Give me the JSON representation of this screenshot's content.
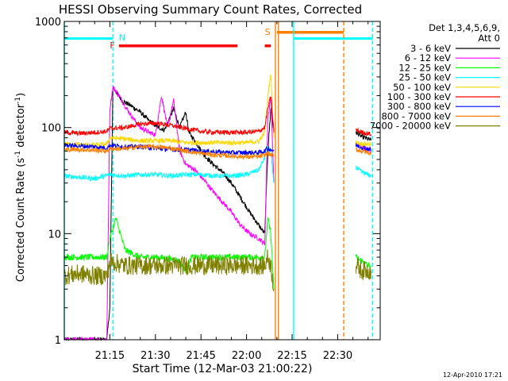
{
  "chart_data": {
    "type": "line",
    "title": "HESSI Observing Summary Count Rates, Corrected",
    "xlabel": "Start Time (12-Mar-03 21:00:22)",
    "ylabel_main": "Corrected Count Rate (s",
    "ylabel_sup1": "-1",
    "ylabel_mid": " detector",
    "ylabel_sup2": "-1",
    "ylabel_end": ")",
    "y_scale": "log",
    "ylim": [
      1,
      1000
    ],
    "xlim_minutes": [
      0,
      104
    ],
    "x_ticks": [
      {
        "m": 15,
        "label": "21:15"
      },
      {
        "m": 30,
        "label": "21:30"
      },
      {
        "m": 45,
        "label": "21:45"
      },
      {
        "m": 60,
        "label": "22:00"
      },
      {
        "m": 75,
        "label": "22:15"
      },
      {
        "m": 90,
        "label": "22:30"
      }
    ],
    "y_ticks": [
      {
        "v": 1,
        "label": "1"
      },
      {
        "v": 10,
        "label": "10"
      },
      {
        "v": 100,
        "label": "100"
      },
      {
        "v": 1000,
        "label": "1000"
      }
    ],
    "legend": {
      "header1": "Det 1,3,4,5,6,9,",
      "header2": "Att 0",
      "placement": "right"
    },
    "series": [
      {
        "name": "3 - 6 keV",
        "color": "#000000",
        "points": [
          [
            0,
            1
          ],
          [
            14,
            1
          ],
          [
            15,
            2
          ],
          [
            16,
            240
          ],
          [
            19,
            180
          ],
          [
            22,
            160
          ],
          [
            25,
            140
          ],
          [
            28,
            115
          ],
          [
            31,
            100
          ],
          [
            33,
            95
          ],
          [
            36,
            150
          ],
          [
            38,
            100
          ],
          [
            40,
            140
          ],
          [
            41,
            90
          ],
          [
            43,
            75
          ],
          [
            46,
            55
          ],
          [
            49,
            45
          ],
          [
            52,
            38
          ],
          [
            55,
            30
          ],
          [
            58,
            22
          ],
          [
            61,
            16
          ],
          [
            64,
            12
          ],
          [
            66,
            10
          ],
          [
            67,
            60
          ],
          [
            68,
            150
          ],
          [
            69,
            90
          ]
        ],
        "points_b": [
          [
            96,
            90
          ],
          [
            98,
            82
          ],
          [
            100,
            78
          ],
          [
            101,
            76
          ]
        ]
      },
      {
        "name": "6 - 12 keV",
        "color": "#ff00ff",
        "points": [
          [
            0,
            1
          ],
          [
            14,
            1
          ],
          [
            15,
            150
          ],
          [
            16,
            240
          ],
          [
            18,
            200
          ],
          [
            20,
            160
          ],
          [
            22,
            130
          ],
          [
            25,
            100
          ],
          [
            28,
            90
          ],
          [
            30,
            85
          ],
          [
            32,
            200
          ],
          [
            34,
            100
          ],
          [
            36,
            180
          ],
          [
            38,
            60
          ],
          [
            40,
            45
          ],
          [
            43,
            40
          ],
          [
            46,
            32
          ],
          [
            49,
            25
          ],
          [
            52,
            20
          ],
          [
            55,
            16
          ],
          [
            58,
            12
          ],
          [
            61,
            10
          ],
          [
            64,
            9
          ],
          [
            66,
            8
          ],
          [
            67,
            120
          ],
          [
            68,
            200
          ],
          [
            69,
            30
          ]
        ],
        "points_b": [
          [
            96,
            70
          ],
          [
            98,
            65
          ],
          [
            100,
            62
          ],
          [
            101,
            60
          ]
        ]
      },
      {
        "name": "12 - 25 keV",
        "color": "#00ff00",
        "points": [
          [
            0,
            6
          ],
          [
            5,
            6
          ],
          [
            10,
            6
          ],
          [
            14,
            6
          ],
          [
            15,
            9
          ],
          [
            17,
            14
          ],
          [
            20,
            7
          ],
          [
            25,
            6
          ],
          [
            30,
            6
          ],
          [
            35,
            5.8
          ],
          [
            38,
            5.5
          ],
          [
            40,
            4.5
          ],
          [
            42,
            6
          ],
          [
            46,
            6
          ],
          [
            50,
            6
          ],
          [
            55,
            6
          ],
          [
            60,
            6
          ],
          [
            66,
            6
          ],
          [
            67,
            14
          ],
          [
            68,
            10
          ],
          [
            69,
            3
          ]
        ],
        "points_b": [
          [
            96,
            6
          ],
          [
            98,
            5.5
          ],
          [
            100,
            5
          ],
          [
            101,
            5
          ]
        ]
      },
      {
        "name": "25 - 50 keV",
        "color": "#00ffff",
        "points": [
          [
            0,
            35
          ],
          [
            5,
            34
          ],
          [
            10,
            33
          ],
          [
            15,
            36
          ],
          [
            20,
            35
          ],
          [
            25,
            36
          ],
          [
            30,
            36
          ],
          [
            35,
            35
          ],
          [
            40,
            36
          ],
          [
            45,
            36
          ],
          [
            50,
            35
          ],
          [
            55,
            35
          ],
          [
            60,
            36
          ],
          [
            64,
            40
          ],
          [
            66,
            52
          ],
          [
            67,
            65
          ],
          [
            68,
            60
          ],
          [
            69,
            30
          ]
        ],
        "points_b": [
          [
            96,
            42
          ],
          [
            98,
            38
          ],
          [
            100,
            36
          ],
          [
            101,
            35
          ]
        ]
      },
      {
        "name": "50 - 100 keV",
        "color": "#ffd700",
        "points": [
          [
            0,
            70
          ],
          [
            10,
            68
          ],
          [
            14,
            70
          ],
          [
            15,
            80
          ],
          [
            20,
            78
          ],
          [
            25,
            75
          ],
          [
            30,
            75
          ],
          [
            35,
            75
          ],
          [
            40,
            72
          ],
          [
            45,
            72
          ],
          [
            50,
            72
          ],
          [
            55,
            72
          ],
          [
            60,
            72
          ],
          [
            64,
            74
          ],
          [
            66,
            90
          ],
          [
            67,
            200
          ],
          [
            68,
            320
          ],
          [
            69,
            80
          ]
        ],
        "points_b": [
          [
            96,
            72
          ],
          [
            98,
            70
          ],
          [
            100,
            70
          ],
          [
            101,
            70
          ]
        ]
      },
      {
        "name": "100 - 300 keV",
        "color": "#ff0000",
        "points": [
          [
            0,
            90
          ],
          [
            5,
            88
          ],
          [
            10,
            90
          ],
          [
            14,
            92
          ],
          [
            15,
            98
          ],
          [
            20,
            100
          ],
          [
            25,
            108
          ],
          [
            30,
            110
          ],
          [
            35,
            105
          ],
          [
            40,
            98
          ],
          [
            45,
            92
          ],
          [
            50,
            90
          ],
          [
            55,
            90
          ],
          [
            60,
            90
          ],
          [
            64,
            92
          ],
          [
            66,
            100
          ],
          [
            67,
            150
          ],
          [
            68,
            200
          ],
          [
            69,
            90
          ]
        ],
        "points_b": [
          [
            96,
            95
          ],
          [
            98,
            90
          ],
          [
            100,
            88
          ],
          [
            101,
            86
          ]
        ]
      },
      {
        "name": "300 - 800 keV",
        "color": "#0000ff",
        "points": [
          [
            0,
            68
          ],
          [
            5,
            67
          ],
          [
            10,
            66
          ],
          [
            14,
            64
          ],
          [
            15,
            68
          ],
          [
            20,
            66
          ],
          [
            25,
            66
          ],
          [
            30,
            64
          ],
          [
            35,
            62
          ],
          [
            40,
            62
          ],
          [
            45,
            60
          ],
          [
            50,
            59
          ],
          [
            55,
            58
          ],
          [
            60,
            58
          ],
          [
            64,
            58
          ],
          [
            66,
            60
          ],
          [
            67,
            64
          ],
          [
            68,
            62
          ],
          [
            69,
            60
          ]
        ],
        "points_b": [
          [
            96,
            68
          ],
          [
            98,
            65
          ],
          [
            100,
            63
          ],
          [
            101,
            62
          ]
        ]
      },
      {
        "name": "800 - 7000 keV",
        "color": "#ff8000",
        "points": [
          [
            0,
            62
          ],
          [
            5,
            62
          ],
          [
            10,
            61
          ],
          [
            14,
            60
          ],
          [
            15,
            63
          ],
          [
            20,
            63
          ],
          [
            25,
            66
          ],
          [
            30,
            66
          ],
          [
            35,
            64
          ],
          [
            40,
            60
          ],
          [
            45,
            57
          ],
          [
            50,
            55
          ],
          [
            55,
            54
          ],
          [
            60,
            53
          ],
          [
            64,
            53
          ],
          [
            66,
            55
          ],
          [
            67,
            57
          ],
          [
            68,
            55
          ],
          [
            69,
            54
          ]
        ],
        "points_b": [
          [
            96,
            62
          ],
          [
            98,
            60
          ],
          [
            100,
            58
          ],
          [
            101,
            57
          ]
        ]
      },
      {
        "name": "7000 - 20000 keV",
        "color": "#808000",
        "points": [
          [
            0,
            4
          ],
          [
            5,
            4.2
          ],
          [
            10,
            4
          ],
          [
            14,
            4
          ],
          [
            15,
            5.5
          ],
          [
            20,
            5
          ],
          [
            25,
            5
          ],
          [
            30,
            5
          ],
          [
            35,
            5
          ],
          [
            40,
            5
          ],
          [
            45,
            5
          ],
          [
            50,
            5
          ],
          [
            55,
            5
          ],
          [
            60,
            5
          ],
          [
            66,
            5
          ],
          [
            67,
            6
          ],
          [
            68,
            5
          ],
          [
            69,
            3
          ]
        ],
        "points_b": [
          [
            96,
            5
          ],
          [
            98,
            4.5
          ],
          [
            100,
            4.5
          ],
          [
            101,
            4.5
          ]
        ]
      }
    ],
    "flags": {
      "night": {
        "label": "N",
        "color": "#00ffff"
      },
      "flare": {
        "label": "F",
        "color": "#ff0000"
      },
      "saa": {
        "label": "S",
        "color": "#ff8000"
      }
    },
    "timestamp": "12-Apr-2010 17:21"
  }
}
